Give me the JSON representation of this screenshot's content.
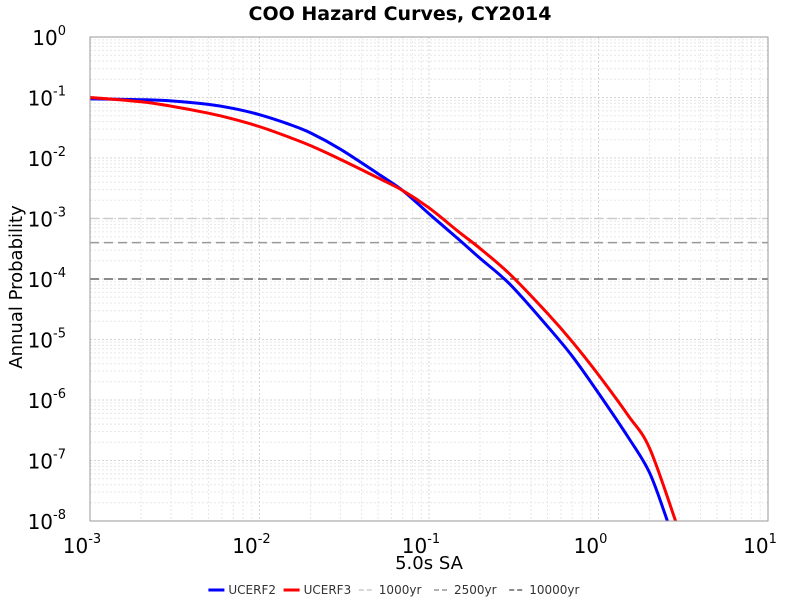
{
  "chart_data": {
    "type": "line",
    "title": "COO Hazard Curves, CY2014",
    "xlabel": "5.0s SA",
    "ylabel": "Annual Probability",
    "x_scale": "log",
    "y_scale": "log",
    "xlim": [
      0.001,
      10
    ],
    "ylim": [
      1e-08,
      1
    ],
    "grid": true,
    "legend_position": "bottom",
    "x_ticks": [
      {
        "base": "10",
        "exp": "-3"
      },
      {
        "base": "10",
        "exp": "-2"
      },
      {
        "base": "10",
        "exp": "-1"
      },
      {
        "base": "10",
        "exp": "0"
      },
      {
        "base": "10",
        "exp": "1"
      }
    ],
    "y_ticks": [
      {
        "base": "10",
        "exp": "0"
      },
      {
        "base": "10",
        "exp": "-1"
      },
      {
        "base": "10",
        "exp": "-2"
      },
      {
        "base": "10",
        "exp": "-3"
      },
      {
        "base": "10",
        "exp": "-4"
      },
      {
        "base": "10",
        "exp": "-5"
      },
      {
        "base": "10",
        "exp": "-6"
      },
      {
        "base": "10",
        "exp": "-7"
      },
      {
        "base": "10",
        "exp": "-8"
      }
    ],
    "series": [
      {
        "name": "UCERF2",
        "color": "#0000ff",
        "x": [
          0.001,
          0.002,
          0.003,
          0.005,
          0.007,
          0.01,
          0.015,
          0.02,
          0.03,
          0.05,
          0.07,
          0.1,
          0.15,
          0.2,
          0.3,
          0.5,
          0.7,
          1.0,
          1.5,
          2.0,
          2.55
        ],
        "y": [
          0.095,
          0.092,
          0.088,
          0.077,
          0.066,
          0.052,
          0.036,
          0.026,
          0.014,
          0.0055,
          0.0029,
          0.0012,
          0.00045,
          0.00022,
          8.2e-05,
          1.65e-05,
          5.3e-06,
          1.3e-06,
          2.4e-07,
          6.3e-08,
          1e-08
        ]
      },
      {
        "name": "UCERF3",
        "color": "#ff0000",
        "x": [
          0.001,
          0.002,
          0.003,
          0.005,
          0.007,
          0.01,
          0.015,
          0.02,
          0.03,
          0.05,
          0.07,
          0.1,
          0.15,
          0.2,
          0.3,
          0.5,
          0.7,
          1.0,
          1.5,
          2.0,
          2.85
        ],
        "y": [
          0.1,
          0.085,
          0.072,
          0.055,
          0.044,
          0.033,
          0.022,
          0.016,
          0.0095,
          0.0047,
          0.0029,
          0.0015,
          0.0006,
          0.00032,
          0.00012,
          2.7e-05,
          9.2e-06,
          2.6e-06,
          5.5e-07,
          1.6e-07,
          1e-08
        ]
      }
    ],
    "reference_lines": [
      {
        "name": "1000yr",
        "y": 0.001,
        "color": "#cccccc"
      },
      {
        "name": "2500yr",
        "y": 0.0004,
        "color": "#999999"
      },
      {
        "name": "10000yr",
        "y": 0.0001,
        "color": "#666666"
      }
    ]
  }
}
